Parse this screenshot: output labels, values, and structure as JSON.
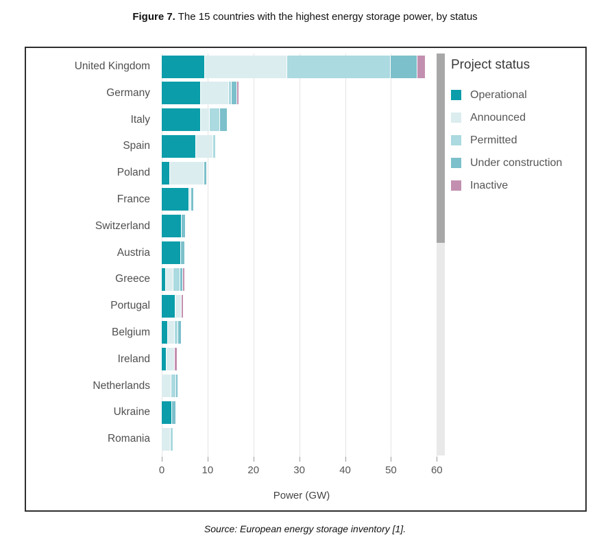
{
  "texts": {
    "figure_label": "Figure 7.",
    "figure_title": " The 15 countries with the highest energy storage power, by status",
    "source": "Source: European energy storage inventory [1]."
  },
  "colors": {
    "operational": "#0b9daa",
    "announced": "#dcedef",
    "permitted": "#abdae0",
    "under_construction": "#7cc0cb",
    "inactive": "#c38fb0",
    "gridline": "#e4e4e4",
    "scrollbar_track": "#e9e9e9",
    "scrollbar_thumb": "#a7a7a7",
    "label_gray": "#4f4f4f"
  },
  "chart_data": {
    "type": "bar",
    "orientation": "horizontal",
    "stacked": true,
    "title": "The 15 countries with the highest energy storage power, by status",
    "xlabel": "Power (GW)",
    "ylabel": "",
    "xlim": [
      0,
      61
    ],
    "xticks": [
      0,
      10,
      20,
      30,
      40,
      50,
      60
    ],
    "grid": true,
    "legend_title": "Project status",
    "statuses": [
      "Operational",
      "Announced",
      "Permitted",
      "Under construction",
      "Inactive"
    ],
    "status_colors": {
      "Operational": "#0b9daa",
      "Announced": "#dcedef",
      "Permitted": "#abdae0",
      "Under construction": "#7cc0cb",
      "Inactive": "#c38fb0"
    },
    "rows": [
      {
        "country": "United Kingdom",
        "values": {
          "Operational": 9.3,
          "Announced": 17.7,
          "Permitted": 22.5,
          "Under construction": 5.7,
          "Inactive": 1.6
        }
      },
      {
        "country": "Germany",
        "values": {
          "Operational": 8.4,
          "Announced": 5.9,
          "Permitted": 0.5,
          "Under construction": 1.1,
          "Inactive": 0.2
        }
      },
      {
        "country": "Italy",
        "values": {
          "Operational": 8.4,
          "Announced": 1.8,
          "Permitted": 2.1,
          "Under construction": 1.4,
          "Inactive": 0
        }
      },
      {
        "country": "Spain",
        "values": {
          "Operational": 7.4,
          "Announced": 3.5,
          "Permitted": 0.5,
          "Under construction": 0,
          "Inactive": 0
        }
      },
      {
        "country": "Poland",
        "values": {
          "Operational": 1.6,
          "Announced": 7.4,
          "Permitted": 0,
          "Under construction": 0.4,
          "Inactive": 0
        }
      },
      {
        "country": "France",
        "values": {
          "Operational": 5.8,
          "Announced": 0.4,
          "Permitted": 0,
          "Under construction": 0.4,
          "Inactive": 0
        }
      },
      {
        "country": "Switzerland",
        "values": {
          "Operational": 4.2,
          "Announced": 0,
          "Permitted": 0,
          "Under construction": 0.7,
          "Inactive": 0
        }
      },
      {
        "country": "Austria",
        "values": {
          "Operational": 4.1,
          "Announced": 0,
          "Permitted": 0,
          "Under construction": 0.7,
          "Inactive": 0
        }
      },
      {
        "country": "Greece",
        "values": {
          "Operational": 0.8,
          "Announced": 1.4,
          "Permitted": 1.4,
          "Under construction": 0.4,
          "Inactive": 0.3
        }
      },
      {
        "country": "Portugal",
        "values": {
          "Operational": 2.8,
          "Announced": 1.3,
          "Permitted": 0,
          "Under construction": 0,
          "Inactive": 0.2
        }
      },
      {
        "country": "Belgium",
        "values": {
          "Operational": 1.2,
          "Announced": 1.4,
          "Permitted": 0.5,
          "Under construction": 0.7,
          "Inactive": 0
        }
      },
      {
        "country": "Ireland",
        "values": {
          "Operational": 0.9,
          "Announced": 1.7,
          "Permitted": 0,
          "Under construction": 0,
          "Inactive": 0.4
        }
      },
      {
        "country": "Netherlands",
        "values": {
          "Operational": 0,
          "Announced": 1.9,
          "Permitted": 0.9,
          "Under construction": 0.4,
          "Inactive": 0
        }
      },
      {
        "country": "Ukraine",
        "values": {
          "Operational": 2.1,
          "Announced": 0,
          "Permitted": 0,
          "Under construction": 0.8,
          "Inactive": 0
        }
      },
      {
        "country": "Romania",
        "values": {
          "Operational": 0,
          "Announced": 1.8,
          "Permitted": 0.4,
          "Under construction": 0,
          "Inactive": 0
        }
      }
    ]
  },
  "scrollbar": {
    "present": true
  }
}
